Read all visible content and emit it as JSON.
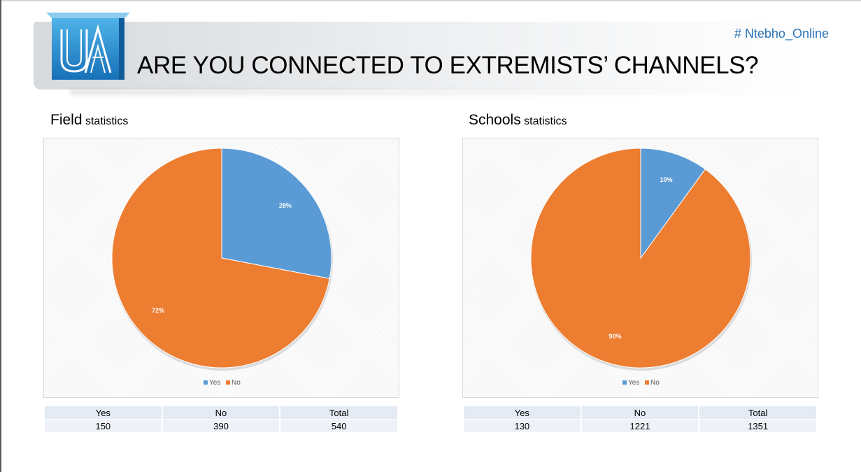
{
  "header": {
    "title": "ARE YOU CONNECTED TO EXTREMISTS’ CHANNELS?",
    "hashtag": "# Ntebho_Online",
    "logo_text": "UA"
  },
  "colors": {
    "yes": "#5b9bd5",
    "no": "#ed7d31",
    "accent": "#2b73b6"
  },
  "sections": [
    {
      "title_big": "Field",
      "title_small": "statistics",
      "table": {
        "headers": [
          "Yes",
          "No",
          "Total"
        ],
        "values": [
          "150",
          "390",
          "540"
        ]
      }
    },
    {
      "title_big": "Schools",
      "title_small": "statistics",
      "table": {
        "headers": [
          "Yes",
          "No",
          "Total"
        ],
        "values": [
          "130",
          "1221",
          "1351"
        ]
      }
    }
  ],
  "chart_data": [
    {
      "type": "pie",
      "categories": [
        "Yes",
        "No"
      ],
      "values": [
        28,
        72
      ],
      "labels": [
        "28%",
        "72%"
      ],
      "legend": "bottom",
      "legend_entries": [
        "Yes",
        "No"
      ],
      "colors": [
        "#5b9bd5",
        "#ed7d31"
      ]
    },
    {
      "type": "pie",
      "categories": [
        "Yes",
        "No"
      ],
      "values": [
        10,
        90
      ],
      "labels": [
        "10%",
        "90%"
      ],
      "legend": "bottom",
      "legend_entries": [
        "Yes",
        "No"
      ],
      "colors": [
        "#5b9bd5",
        "#ed7d31"
      ]
    }
  ]
}
